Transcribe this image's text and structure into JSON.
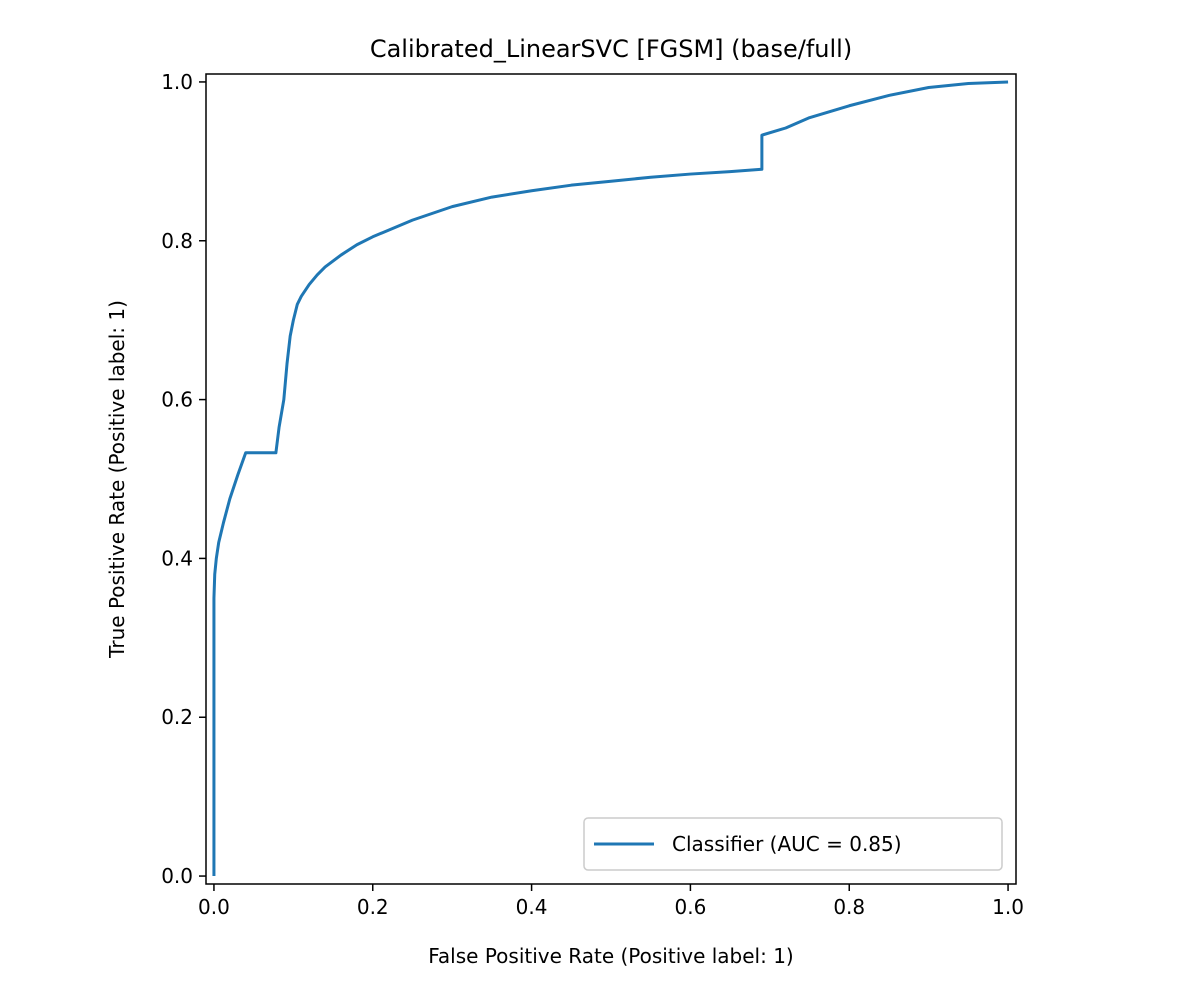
{
  "chart_data": {
    "type": "line",
    "title": "Calibrated_LinearSVC [FGSM] (base/full)",
    "xlabel": "False Positive Rate (Positive label: 1)",
    "ylabel": "True Positive Rate (Positive label: 1)",
    "xlim": [
      -0.01,
      1.01
    ],
    "ylim": [
      -0.01,
      1.01
    ],
    "xticks": [
      "0.0",
      "0.2",
      "0.4",
      "0.6",
      "0.8",
      "1.0"
    ],
    "yticks": [
      "0.0",
      "0.2",
      "0.4",
      "0.6",
      "0.8",
      "1.0"
    ],
    "grid": false,
    "legend_position": "lower-right",
    "series": [
      {
        "name": "Classifier (AUC = 0.85)",
        "color": "#1f77b4",
        "x": [
          0.0,
          0.0,
          0.001,
          0.003,
          0.006,
          0.012,
          0.02,
          0.03,
          0.04,
          0.078,
          0.082,
          0.088,
          0.092,
          0.096,
          0.1,
          0.105,
          0.11,
          0.12,
          0.13,
          0.14,
          0.16,
          0.18,
          0.2,
          0.25,
          0.3,
          0.35,
          0.4,
          0.45,
          0.5,
          0.55,
          0.6,
          0.65,
          0.69,
          0.69,
          0.72,
          0.75,
          0.8,
          0.85,
          0.9,
          0.95,
          1.0
        ],
        "y": [
          0.0,
          0.35,
          0.38,
          0.4,
          0.42,
          0.445,
          0.475,
          0.505,
          0.533,
          0.533,
          0.565,
          0.6,
          0.645,
          0.68,
          0.7,
          0.72,
          0.73,
          0.745,
          0.757,
          0.767,
          0.782,
          0.795,
          0.805,
          0.826,
          0.843,
          0.855,
          0.863,
          0.87,
          0.875,
          0.88,
          0.884,
          0.887,
          0.89,
          0.933,
          0.942,
          0.955,
          0.97,
          0.983,
          0.993,
          0.998,
          1.0
        ]
      }
    ]
  }
}
